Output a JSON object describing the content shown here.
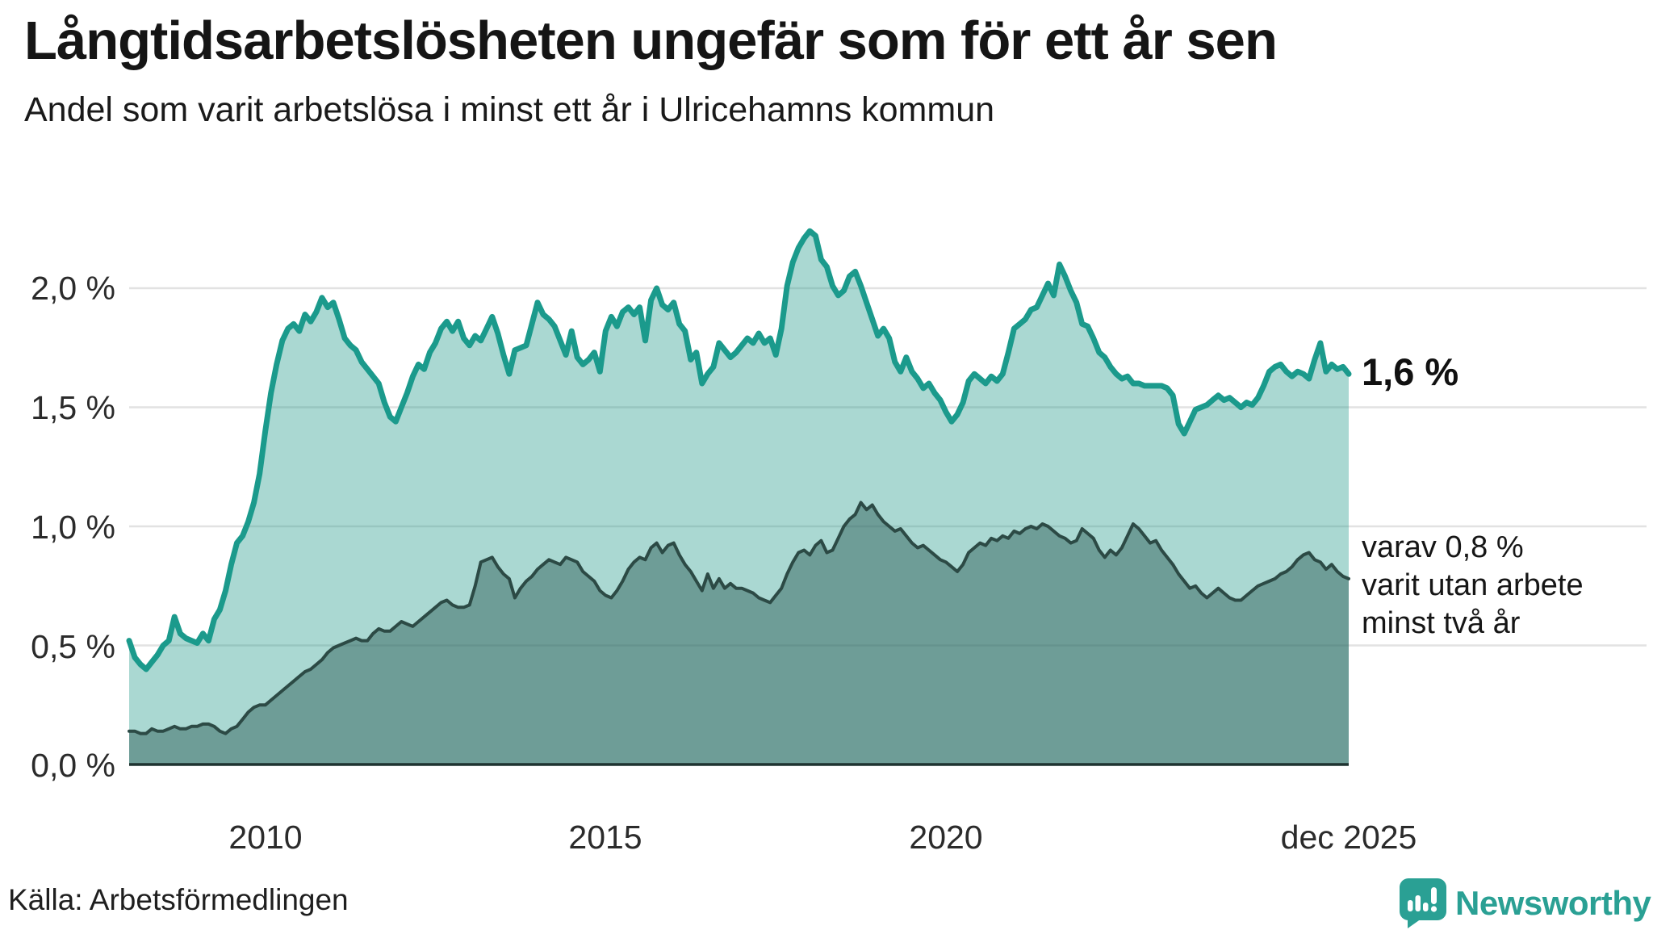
{
  "chart_data": {
    "type": "area",
    "title": "Långtidsarbetslösheten ungefär som för ett år sen",
    "subtitle": "Andel som varit arbetslösa i minst ett år i Ulricehamns kommun",
    "grid": true,
    "legend": "direct labels at right edge of lines",
    "x_axis": {
      "start": "2008-01",
      "end": "2025-12",
      "frequency": "monthly",
      "ticks": [
        {
          "month_index": 24,
          "label": "2010"
        },
        {
          "month_index": 84,
          "label": "2015"
        },
        {
          "month_index": 144,
          "label": "2020"
        },
        {
          "month_index": 215,
          "label": "dec 2025"
        }
      ]
    },
    "y_axis": {
      "unit": "%",
      "ylim": [
        0,
        2.3
      ],
      "ticks": [
        {
          "value": 2.0,
          "label": "2,0 %"
        },
        {
          "value": 1.5,
          "label": "1,5 %"
        },
        {
          "value": 1.0,
          "label": "1,0 %"
        },
        {
          "value": 0.5,
          "label": "0,5 %"
        },
        {
          "value": 0.0,
          "label": "0,0 %"
        }
      ]
    },
    "series": [
      {
        "name": "Andel arbetslösa minst ett år",
        "end_value_label": "1,6 %",
        "values": [
          0.52,
          0.45,
          0.42,
          0.4,
          0.43,
          0.46,
          0.5,
          0.52,
          0.62,
          0.55,
          0.53,
          0.52,
          0.51,
          0.55,
          0.52,
          0.61,
          0.65,
          0.73,
          0.84,
          0.93,
          0.96,
          1.02,
          1.1,
          1.22,
          1.4,
          1.56,
          1.68,
          1.78,
          1.83,
          1.85,
          1.82,
          1.89,
          1.86,
          1.9,
          1.96,
          1.92,
          1.94,
          1.87,
          1.79,
          1.76,
          1.74,
          1.69,
          1.66,
          1.63,
          1.6,
          1.52,
          1.46,
          1.44,
          1.5,
          1.56,
          1.63,
          1.68,
          1.66,
          1.73,
          1.77,
          1.83,
          1.86,
          1.82,
          1.86,
          1.79,
          1.76,
          1.8,
          1.78,
          1.83,
          1.88,
          1.81,
          1.72,
          1.64,
          1.74,
          1.75,
          1.76,
          1.85,
          1.94,
          1.89,
          1.87,
          1.84,
          1.78,
          1.72,
          1.82,
          1.71,
          1.68,
          1.7,
          1.73,
          1.65,
          1.82,
          1.88,
          1.84,
          1.9,
          1.92,
          1.89,
          1.92,
          1.78,
          1.95,
          2.0,
          1.93,
          1.91,
          1.94,
          1.85,
          1.82,
          1.7,
          1.73,
          1.6,
          1.64,
          1.67,
          1.77,
          1.74,
          1.71,
          1.73,
          1.76,
          1.79,
          1.77,
          1.81,
          1.77,
          1.79,
          1.72,
          1.83,
          2.01,
          2.11,
          2.17,
          2.21,
          2.24,
          2.22,
          2.12,
          2.09,
          2.01,
          1.97,
          1.99,
          2.05,
          2.07,
          2.01,
          1.94,
          1.87,
          1.8,
          1.83,
          1.79,
          1.69,
          1.65,
          1.71,
          1.65,
          1.62,
          1.58,
          1.6,
          1.56,
          1.53,
          1.48,
          1.44,
          1.47,
          1.52,
          1.61,
          1.64,
          1.62,
          1.6,
          1.63,
          1.61,
          1.64,
          1.73,
          1.83,
          1.85,
          1.87,
          1.91,
          1.92,
          1.97,
          2.02,
          1.97,
          2.1,
          2.05,
          1.99,
          1.94,
          1.85,
          1.84,
          1.79,
          1.73,
          1.71,
          1.67,
          1.64,
          1.62,
          1.63,
          1.6,
          1.6,
          1.59,
          1.59,
          1.59,
          1.59,
          1.58,
          1.55,
          1.43,
          1.39,
          1.44,
          1.49,
          1.5,
          1.51,
          1.53,
          1.55,
          1.53,
          1.54,
          1.52,
          1.5,
          1.52,
          1.51,
          1.54,
          1.59,
          1.65,
          1.67,
          1.68,
          1.65,
          1.63,
          1.65,
          1.64,
          1.62,
          1.7,
          1.77,
          1.65,
          1.68,
          1.66,
          1.67,
          1.64
        ]
      },
      {
        "name": "varav arbetslösa minst två år",
        "end_value_label": "0,8 %",
        "values": [
          0.14,
          0.14,
          0.13,
          0.13,
          0.15,
          0.14,
          0.14,
          0.15,
          0.16,
          0.15,
          0.15,
          0.16,
          0.16,
          0.17,
          0.17,
          0.16,
          0.14,
          0.13,
          0.15,
          0.16,
          0.19,
          0.22,
          0.24,
          0.25,
          0.25,
          0.27,
          0.29,
          0.31,
          0.33,
          0.35,
          0.37,
          0.39,
          0.4,
          0.42,
          0.44,
          0.47,
          0.49,
          0.5,
          0.51,
          0.52,
          0.53,
          0.52,
          0.52,
          0.55,
          0.57,
          0.56,
          0.56,
          0.58,
          0.6,
          0.59,
          0.58,
          0.6,
          0.62,
          0.64,
          0.66,
          0.68,
          0.69,
          0.67,
          0.66,
          0.66,
          0.67,
          0.75,
          0.85,
          0.86,
          0.87,
          0.83,
          0.8,
          0.78,
          0.7,
          0.74,
          0.77,
          0.79,
          0.82,
          0.84,
          0.86,
          0.85,
          0.84,
          0.87,
          0.86,
          0.85,
          0.81,
          0.79,
          0.77,
          0.73,
          0.71,
          0.7,
          0.73,
          0.77,
          0.82,
          0.85,
          0.87,
          0.86,
          0.91,
          0.93,
          0.89,
          0.92,
          0.93,
          0.88,
          0.84,
          0.81,
          0.77,
          0.73,
          0.8,
          0.74,
          0.78,
          0.74,
          0.76,
          0.74,
          0.74,
          0.73,
          0.72,
          0.7,
          0.69,
          0.68,
          0.71,
          0.74,
          0.8,
          0.85,
          0.89,
          0.9,
          0.88,
          0.92,
          0.94,
          0.89,
          0.9,
          0.95,
          1.0,
          1.03,
          1.05,
          1.1,
          1.07,
          1.09,
          1.05,
          1.02,
          1.0,
          0.98,
          0.99,
          0.96,
          0.93,
          0.91,
          0.92,
          0.9,
          0.88,
          0.86,
          0.85,
          0.83,
          0.81,
          0.84,
          0.89,
          0.91,
          0.93,
          0.92,
          0.95,
          0.94,
          0.96,
          0.95,
          0.98,
          0.97,
          0.99,
          1.0,
          0.99,
          1.01,
          1.0,
          0.98,
          0.96,
          0.95,
          0.93,
          0.94,
          0.99,
          0.97,
          0.95,
          0.9,
          0.87,
          0.9,
          0.88,
          0.91,
          0.96,
          1.01,
          0.99,
          0.96,
          0.93,
          0.94,
          0.9,
          0.87,
          0.84,
          0.8,
          0.77,
          0.74,
          0.75,
          0.72,
          0.7,
          0.72,
          0.74,
          0.72,
          0.7,
          0.69,
          0.69,
          0.71,
          0.73,
          0.75,
          0.76,
          0.77,
          0.78,
          0.8,
          0.81,
          0.83,
          0.86,
          0.88,
          0.89,
          0.86,
          0.85,
          0.82,
          0.84,
          0.81,
          0.79,
          0.78
        ]
      }
    ]
  },
  "annotations": {
    "series1_end_label": "1,6 %",
    "series2_note_lines": [
      "varav 0,8 %",
      "varit utan arbete",
      "minst två år"
    ]
  },
  "footer": {
    "source": "Källa: Arbetsförmedlingen",
    "brand": "Newsworthy"
  },
  "colors": {
    "line1": "#1b9a8c",
    "fill1": "rgba(42,157,143,0.40)",
    "line2": "#2c4a45",
    "fill2": "rgba(47,93,87,0.48)",
    "grid": "#e2e2e2",
    "baseline": "#1e3330",
    "brand": "#2aa094"
  }
}
